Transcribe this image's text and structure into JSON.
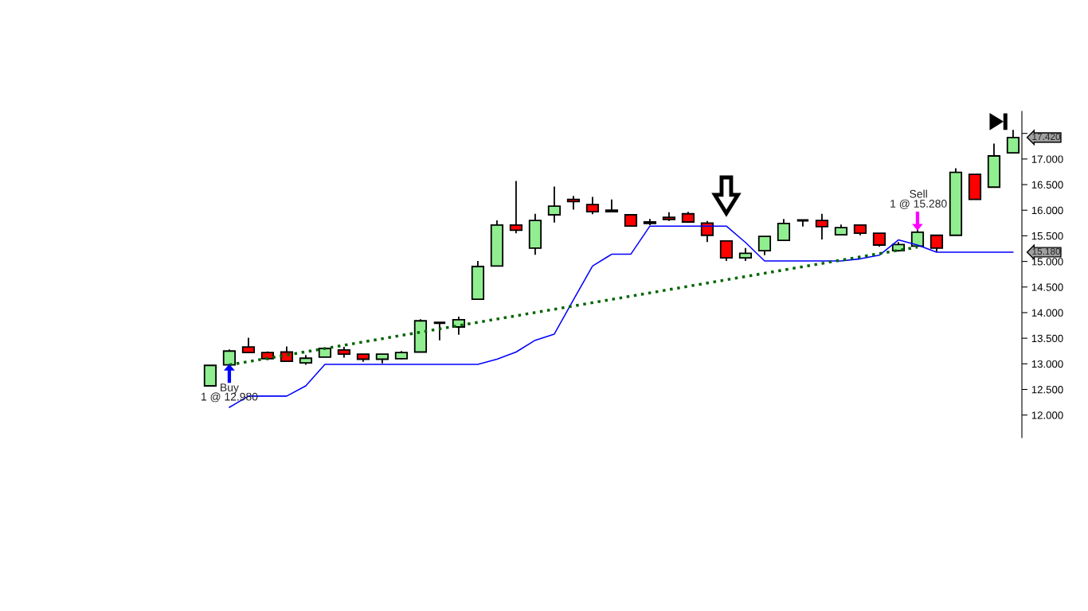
{
  "chart_data": {
    "type": "candlestick",
    "categories": [
      null,
      null,
      null,
      null,
      null,
      null,
      null,
      null,
      null,
      null,
      null,
      null,
      null,
      null,
      null,
      null,
      null,
      null,
      null,
      null,
      null,
      null,
      null,
      null,
      null,
      null,
      null,
      null,
      null,
      null,
      null,
      null,
      null,
      null,
      null,
      null,
      null,
      null,
      null,
      null,
      null,
      null,
      null
    ],
    "ohlc": [
      [
        12.57,
        12.97,
        12.57,
        12.97
      ],
      [
        12.98,
        13.28,
        12.98,
        13.25
      ],
      [
        13.33,
        13.51,
        13.22,
        13.22
      ],
      [
        13.22,
        13.24,
        13.07,
        13.1
      ],
      [
        13.23,
        13.34,
        13.05,
        13.05
      ],
      [
        13.02,
        13.17,
        12.98,
        13.11
      ],
      [
        13.13,
        13.3,
        13.13,
        13.3
      ],
      [
        13.27,
        13.33,
        13.12,
        13.19
      ],
      [
        13.19,
        13.19,
        13.04,
        13.09
      ],
      [
        13.09,
        13.19,
        13.01,
        13.19
      ],
      [
        13.1,
        13.25,
        13.09,
        13.22
      ],
      [
        13.23,
        13.87,
        13.23,
        13.84
      ],
      [
        13.8,
        13.8,
        13.46,
        13.8
      ],
      [
        13.72,
        13.92,
        13.57,
        13.86
      ],
      [
        14.26,
        15.01,
        14.26,
        14.9
      ],
      [
        14.91,
        15.8,
        14.91,
        15.71
      ],
      [
        15.71,
        16.57,
        15.55,
        15.61
      ],
      [
        15.26,
        15.93,
        15.13,
        15.8
      ],
      [
        15.91,
        16.46,
        15.76,
        16.08
      ],
      [
        16.21,
        16.28,
        16.01,
        16.17
      ],
      [
        16.11,
        16.26,
        15.92,
        15.97
      ],
      [
        16.0,
        16.21,
        15.97,
        15.97
      ],
      [
        15.91,
        15.91,
        15.69,
        15.69
      ],
      [
        15.74,
        15.83,
        15.71,
        15.77
      ],
      [
        15.86,
        15.96,
        15.79,
        15.82
      ],
      [
        15.93,
        15.97,
        15.77,
        15.77
      ],
      [
        15.75,
        15.79,
        15.38,
        15.51
      ],
      [
        15.4,
        15.4,
        15.01,
        15.07
      ],
      [
        15.07,
        15.26,
        15.01,
        15.16
      ],
      [
        15.21,
        15.49,
        15.12,
        15.49
      ],
      [
        15.41,
        15.83,
        15.41,
        15.74
      ],
      [
        15.8,
        15.8,
        15.68,
        15.8
      ],
      [
        15.8,
        15.93,
        15.43,
        15.68
      ],
      [
        15.52,
        15.72,
        15.52,
        15.66
      ],
      [
        15.71,
        15.71,
        15.51,
        15.55
      ],
      [
        15.55,
        15.55,
        15.29,
        15.32
      ],
      [
        15.21,
        15.38,
        15.19,
        15.33
      ],
      [
        15.3,
        15.63,
        15.3,
        15.57
      ],
      [
        15.51,
        15.52,
        15.19,
        15.26
      ],
      [
        15.51,
        16.82,
        15.51,
        16.74
      ],
      [
        16.7,
        16.7,
        16.21,
        16.21
      ],
      [
        16.45,
        17.3,
        16.45,
        17.06
      ],
      [
        17.12,
        17.57,
        17.12,
        17.42
      ]
    ],
    "colors": [
      "#90ee90",
      "#90ee90",
      "#ff0000",
      "#ff0000",
      "#ff0000",
      "#90ee90",
      "#90ee90",
      "#ff0000",
      "#ff0000",
      "#90ee90",
      "#90ee90",
      "#90ee90",
      "#000000",
      "#90ee90",
      "#90ee90",
      "#90ee90",
      "#ff0000",
      "#90ee90",
      "#90ee90",
      "#ff0000",
      "#ff0000",
      "#ff0000",
      "#ff0000",
      "#90ee90",
      "#ff0000",
      "#ff0000",
      "#ff0000",
      "#ff0000",
      "#90ee90",
      "#90ee90",
      "#90ee90",
      "#000000",
      "#ff0000",
      "#90ee90",
      "#ff0000",
      "#ff0000",
      "#90ee90",
      "#90ee90",
      "#ff0000",
      "#90ee90",
      "#ff0000",
      "#90ee90",
      "#90ee90"
    ],
    "series": [
      {
        "type": "line",
        "color": "#0000ff",
        "values": [
          null,
          12.15,
          12.37,
          12.37,
          12.37,
          12.57,
          12.99,
          12.99,
          12.99,
          12.99,
          12.99,
          12.99,
          12.99,
          12.99,
          12.99,
          13.09,
          13.23,
          13.46,
          13.58,
          14.25,
          14.91,
          15.14,
          15.14,
          15.69,
          15.69,
          15.69,
          15.69,
          15.69,
          15.37,
          15.01,
          15.01,
          15.01,
          15.01,
          15.01,
          15.05,
          15.12,
          15.42,
          15.32,
          15.18,
          15.18,
          15.18,
          15.18,
          15.18
        ]
      },
      {
        "type": "line",
        "color": "#006400",
        "line_style": "dotted",
        "values": [
          null,
          12.98,
          null,
          null,
          null,
          null,
          null,
          null,
          null,
          null,
          null,
          null,
          null,
          null,
          null,
          null,
          null,
          null,
          null,
          null,
          null,
          null,
          null,
          null,
          null,
          null,
          null,
          null,
          null,
          null,
          null,
          null,
          null,
          null,
          null,
          null,
          null,
          15.28,
          null,
          null,
          null,
          null,
          null
        ]
      }
    ],
    "ylim": [
      11.56,
      17.93
    ],
    "yticks": [
      {
        "value": 12,
        "label": "12.000"
      },
      {
        "value": 12.5,
        "label": "12.500"
      },
      {
        "value": 13,
        "label": "13.000"
      },
      {
        "value": 13.5,
        "label": "13.500"
      },
      {
        "value": 14,
        "label": "14.000"
      },
      {
        "value": 14.5,
        "label": "14.500"
      },
      {
        "value": 15,
        "label": "15.000"
      },
      {
        "value": 15.5,
        "label": "15.500"
      },
      {
        "value": 16,
        "label": "16.000"
      },
      {
        "value": 16.5,
        "label": "16.500"
      },
      {
        "value": 17,
        "label": "17.000"
      },
      {
        "value": 17.5,
        "label": null
      }
    ],
    "tick_labels": "y",
    "grid": false,
    "annotations": [
      "Buy",
      "1 @ 12.980",
      "Sell",
      "1 @ 15.280",
      "17.420",
      "15.180"
    ]
  }
}
